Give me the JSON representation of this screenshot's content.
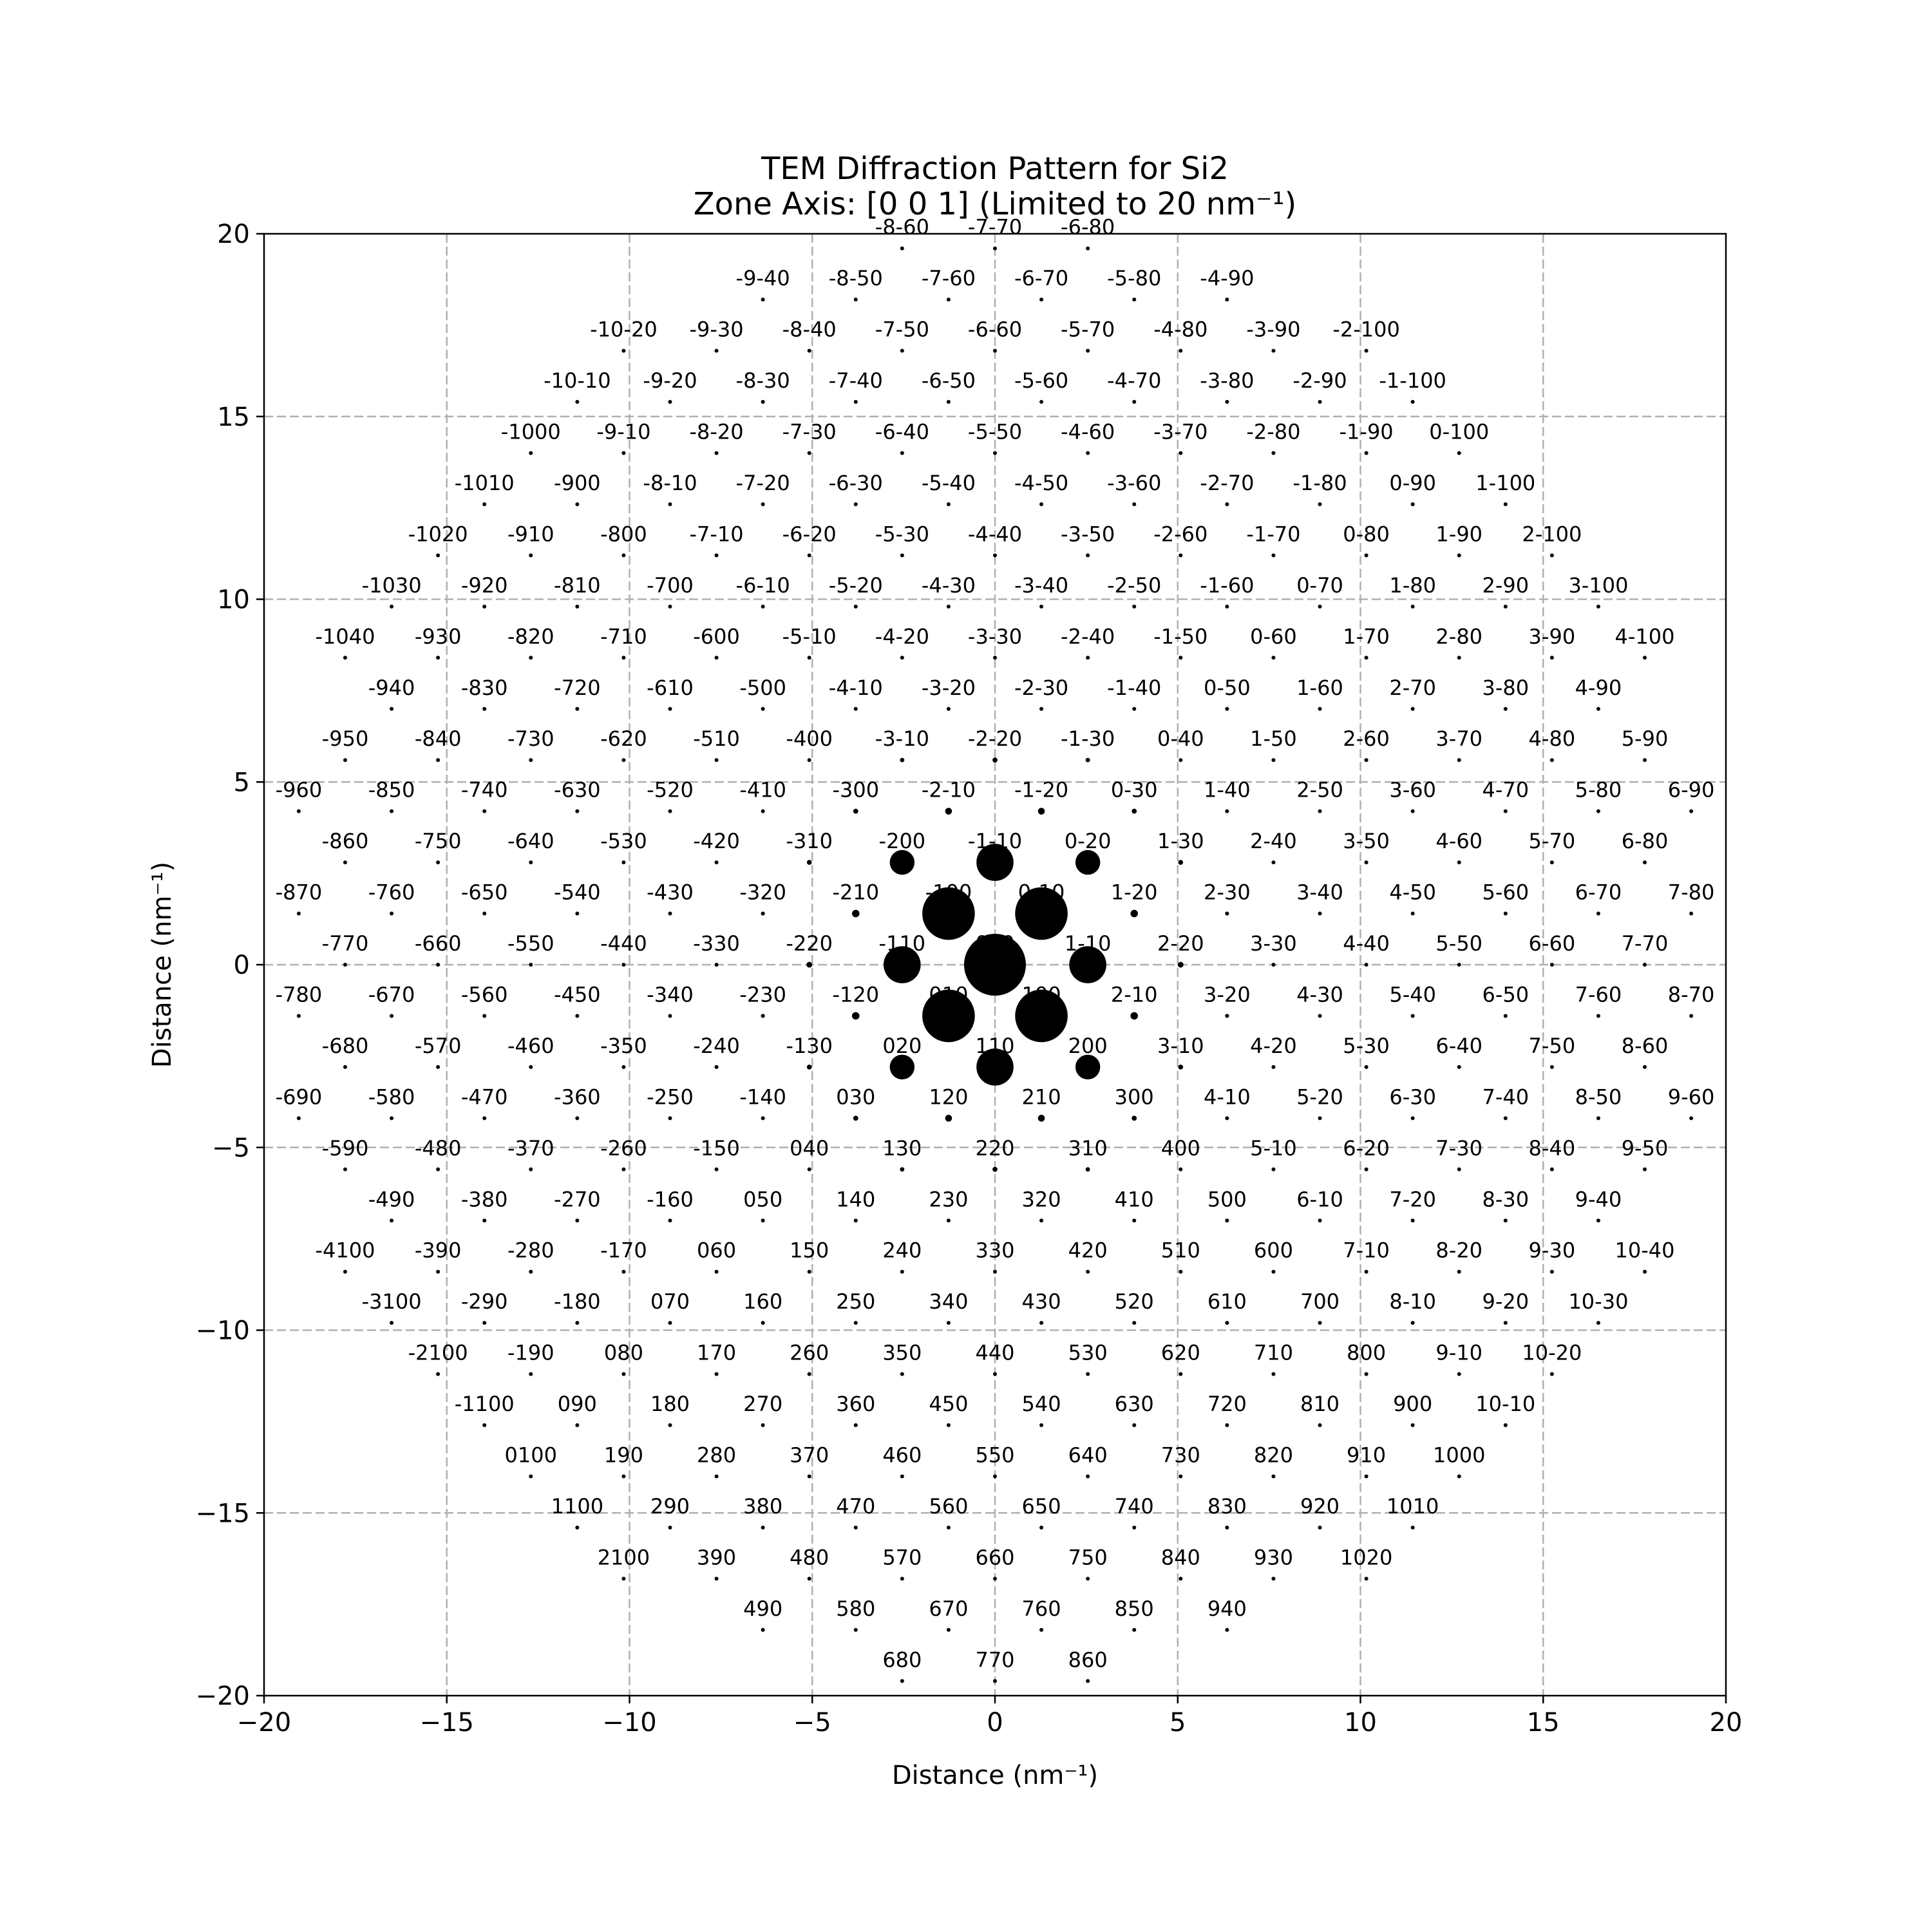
{
  "chart_data": {
    "type": "scatter",
    "title": "TEM Diffraction Pattern for Si2",
    "subtitle": "Zone Axis: [0 0 1] (Limited to 20 nm⁻¹)",
    "xlabel": "Distance (nm⁻¹)",
    "ylabel": "Distance (nm⁻¹)",
    "xlim": [
      -20,
      20
    ],
    "ylim": [
      -20,
      20
    ],
    "xticks": [
      "−20",
      "−15",
      "−10",
      "−5",
      "0",
      "5",
      "10",
      "15",
      "20"
    ],
    "yticks": [
      "−20",
      "−15",
      "−10",
      "−5",
      "0",
      "5",
      "10",
      "15",
      "20"
    ],
    "grid": true,
    "marker_color": "#000000",
    "lattice": {
      "h_range": [
        -11,
        11
      ],
      "k_range": [
        -10,
        11
      ],
      "a": [
        1.27,
        -1.4
      ],
      "b": [
        -1.27,
        -1.4
      ],
      "note_units": "data units (nm⁻¹) per reciprocal lattice step"
    },
    "intensities": [
      {
        "h": 0,
        "k": 0,
        "size": 1.0
      },
      {
        "h": 1,
        "k": 0,
        "size": 0.85
      },
      {
        "h": -1,
        "k": 0,
        "size": 0.85
      },
      {
        "h": 0,
        "k": 1,
        "size": 0.85
      },
      {
        "h": 0,
        "k": -1,
        "size": 0.85
      },
      {
        "h": 1,
        "k": -1,
        "size": 0.6
      },
      {
        "h": -1,
        "k": 1,
        "size": 0.6
      },
      {
        "h": 1,
        "k": 1,
        "size": 0.6
      },
      {
        "h": -1,
        "k": -1,
        "size": 0.6
      },
      {
        "h": 2,
        "k": 0,
        "size": 0.4
      },
      {
        "h": -2,
        "k": 0,
        "size": 0.4
      },
      {
        "h": 0,
        "k": 2,
        "size": 0.4
      },
      {
        "h": 0,
        "k": -2,
        "size": 0.4
      }
    ]
  }
}
